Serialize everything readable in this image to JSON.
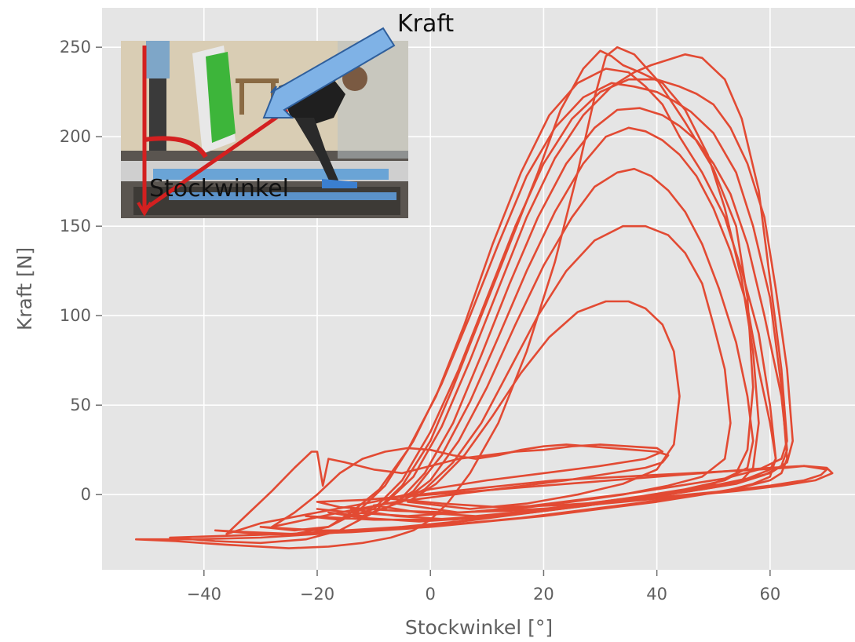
{
  "chart_data": {
    "type": "line",
    "title": "",
    "xlabel": "Stockwinkel [°]",
    "ylabel": "Kraft [N]",
    "xlim": [
      -58,
      75
    ],
    "ylim": [
      -42,
      272
    ],
    "xticks": [
      -40,
      -20,
      0,
      20,
      40,
      60
    ],
    "yticks": [
      0,
      50,
      100,
      150,
      200,
      250
    ],
    "xtick_labels": [
      "−40",
      "−20",
      "0",
      "20",
      "40",
      "60"
    ],
    "ytick_labels": [
      "0",
      "50",
      "100",
      "150",
      "200",
      "250"
    ],
    "grid": true,
    "line_color": "#e24a33",
    "background_color": "#e5e5e5",
    "description_of_series": "Overlaid force-angle loops (hysteresis cycles) of repeated poling strokes",
    "series": [
      {
        "x": [
          -52,
          -45,
          -36,
          -25,
          -18,
          -12,
          -7,
          -3,
          0,
          3,
          7,
          12,
          17,
          22,
          26,
          29,
          31,
          33,
          36,
          40,
          45,
          50,
          54,
          56,
          57,
          56,
          54,
          50,
          44,
          36,
          28,
          18,
          8,
          -2,
          -12,
          -20,
          -30,
          -42,
          -52
        ],
        "y": [
          -25,
          -26,
          -28,
          -30,
          -29,
          -27,
          -24,
          -20,
          -14,
          -5,
          12,
          40,
          80,
          130,
          180,
          222,
          245,
          250,
          246,
          232,
          208,
          182,
          150,
          110,
          60,
          25,
          12,
          6,
          2,
          -2,
          -6,
          -10,
          -14,
          -18,
          -20,
          -22,
          -24,
          -25,
          -25
        ]
      },
      {
        "x": [
          -46,
          -38,
          -30,
          -22,
          -16,
          -10,
          -5,
          0,
          4,
          9,
          14,
          19,
          23,
          27,
          30,
          32,
          34,
          37,
          41,
          45,
          49,
          52,
          55,
          57,
          58,
          57,
          55,
          50,
          42,
          34,
          25,
          15,
          5,
          -5,
          -15,
          -25,
          -36,
          -46
        ],
        "y": [
          -24,
          -26,
          -27,
          -25,
          -20,
          -10,
          5,
          30,
          60,
          100,
          140,
          180,
          215,
          238,
          248,
          245,
          240,
          236,
          230,
          215,
          190,
          160,
          120,
          80,
          40,
          15,
          8,
          4,
          0,
          -3,
          -7,
          -11,
          -15,
          -18,
          -20,
          -22,
          -23,
          -24
        ]
      },
      {
        "x": [
          -38,
          -30,
          -24,
          -18,
          -14,
          -9,
          -4,
          1,
          6,
          11,
          16,
          21,
          26,
          31,
          35,
          38,
          41,
          44,
          48,
          52,
          55,
          58,
          60,
          61,
          60,
          57,
          52,
          45,
          36,
          26,
          16,
          6,
          -4,
          -14,
          -24,
          -32,
          -38
        ],
        "y": [
          -20,
          -22,
          -22,
          -18,
          -10,
          3,
          25,
          55,
          95,
          140,
          180,
          212,
          230,
          238,
          236,
          228,
          218,
          200,
          180,
          155,
          125,
          90,
          50,
          20,
          10,
          6,
          2,
          -1,
          -5,
          -9,
          -13,
          -16,
          -19,
          -21,
          -22,
          -21,
          -20
        ]
      },
      {
        "x": [
          -30,
          -24,
          -18,
          -13,
          -8,
          -3,
          2,
          7,
          12,
          17,
          22,
          27,
          32,
          36,
          40,
          43,
          46,
          50,
          54,
          57,
          60,
          62,
          63,
          62,
          60,
          55,
          48,
          40,
          30,
          20,
          10,
          0,
          -10,
          -20,
          -30
        ],
        "y": [
          -18,
          -20,
          -18,
          -10,
          5,
          30,
          62,
          100,
          140,
          178,
          205,
          222,
          230,
          228,
          225,
          220,
          214,
          202,
          180,
          150,
          110,
          60,
          20,
          12,
          8,
          4,
          0,
          -4,
          -8,
          -12,
          -15,
          -18,
          -20,
          -20,
          -18
        ]
      },
      {
        "x": [
          -22,
          -16,
          -10,
          -5,
          0,
          5,
          10,
          15,
          20,
          25,
          30,
          35,
          40,
          44,
          47,
          50,
          53,
          56,
          59,
          61,
          63,
          64,
          63,
          60,
          55,
          48,
          40,
          30,
          20,
          10,
          0,
          -10,
          -22
        ],
        "y": [
          -12,
          -14,
          -8,
          8,
          35,
          70,
          110,
          150,
          185,
          210,
          225,
          232,
          232,
          228,
          224,
          218,
          205,
          185,
          155,
          115,
          70,
          30,
          18,
          12,
          8,
          4,
          0,
          -4,
          -8,
          -12,
          -14,
          -14,
          -12
        ]
      },
      {
        "x": [
          -20,
          -14,
          -8,
          -3,
          2,
          7,
          12,
          17,
          22,
          27,
          32,
          36,
          39,
          42,
          45,
          48,
          52,
          55,
          58,
          60,
          62,
          63,
          62,
          58,
          52,
          44,
          36,
          26,
          16,
          6,
          -4,
          -14,
          -20
        ],
        "y": [
          -8,
          -10,
          -5,
          10,
          38,
          75,
          115,
          155,
          188,
          212,
          228,
          236,
          240,
          243,
          246,
          244,
          232,
          210,
          170,
          120,
          70,
          30,
          20,
          14,
          9,
          5,
          1,
          -3,
          -7,
          -10,
          -12,
          -10,
          -8
        ]
      },
      {
        "x": [
          -18,
          -12,
          -6,
          -1,
          4,
          9,
          14,
          19,
          24,
          29,
          33,
          37,
          41,
          44,
          47,
          50,
          53,
          56,
          59,
          62,
          63,
          62,
          59,
          54,
          46,
          37,
          28,
          18,
          8,
          -2,
          -12,
          -18
        ],
        "y": [
          -10,
          -12,
          -5,
          12,
          40,
          78,
          118,
          155,
          185,
          205,
          215,
          216,
          212,
          206,
          198,
          185,
          168,
          140,
          100,
          55,
          25,
          16,
          11,
          6,
          2,
          -2,
          -6,
          -10,
          -13,
          -15,
          -13,
          -10
        ]
      },
      {
        "x": [
          -14,
          -8,
          -3,
          2,
          7,
          12,
          17,
          22,
          27,
          31,
          35,
          38,
          41,
          44,
          47,
          50,
          53,
          56,
          58,
          60,
          61,
          60,
          56,
          50,
          42,
          33,
          24,
          14,
          4,
          -6,
          -14
        ],
        "y": [
          -8,
          -8,
          2,
          22,
          52,
          88,
          125,
          158,
          185,
          200,
          205,
          203,
          198,
          190,
          178,
          160,
          136,
          105,
          70,
          40,
          20,
          14,
          9,
          5,
          1,
          -3,
          -7,
          -11,
          -14,
          -12,
          -8
        ]
      },
      {
        "x": [
          -10,
          -5,
          0,
          5,
          10,
          15,
          20,
          25,
          29,
          33,
          36,
          39,
          42,
          45,
          48,
          51,
          54,
          56,
          57,
          56,
          52,
          45,
          37,
          28,
          18,
          8,
          -2,
          -10
        ],
        "y": [
          -6,
          -4,
          8,
          30,
          60,
          95,
          128,
          155,
          172,
          180,
          182,
          178,
          170,
          158,
          140,
          115,
          85,
          55,
          30,
          15,
          8,
          3,
          -1,
          -5,
          -9,
          -12,
          -10,
          -6
        ]
      },
      {
        "x": [
          -6,
          -1,
          4,
          9,
          14,
          19,
          24,
          29,
          34,
          38,
          42,
          45,
          48,
          50,
          52,
          53,
          52,
          48,
          42,
          34,
          25,
          15,
          5,
          -6
        ],
        "y": [
          -5,
          3,
          18,
          40,
          70,
          100,
          125,
          142,
          150,
          150,
          145,
          135,
          118,
          95,
          70,
          40,
          20,
          10,
          5,
          0,
          -4,
          -8,
          -10,
          -5
        ]
      },
      {
        "x": [
          -4,
          1,
          6,
          11,
          16,
          21,
          26,
          31,
          35,
          38,
          41,
          43,
          44,
          43,
          40,
          34,
          26,
          17,
          7,
          -4
        ],
        "y": [
          -4,
          6,
          22,
          44,
          68,
          88,
          102,
          108,
          108,
          104,
          95,
          80,
          55,
          28,
          14,
          6,
          0,
          -5,
          -8,
          -4
        ]
      },
      {
        "x": [
          -8,
          -2,
          4,
          10,
          16,
          22,
          28,
          34,
          40,
          46,
          52,
          58,
          63,
          66,
          68,
          70,
          69,
          66,
          60,
          52,
          42,
          32,
          22,
          12,
          2,
          -8
        ],
        "y": [
          -2,
          0,
          2,
          4,
          6,
          8,
          9,
          10,
          11,
          12,
          13,
          14,
          15,
          16,
          15,
          14,
          11,
          8,
          5,
          2,
          -1,
          -4,
          -6,
          -7,
          -5,
          -2
        ]
      },
      {
        "x": [
          -20,
          -12,
          -4,
          4,
          12,
          20,
          28,
          36,
          44,
          52,
          60,
          66,
          70,
          71,
          68,
          62,
          54,
          44,
          34,
          24,
          14,
          4,
          -6,
          -16,
          -20
        ],
        "y": [
          -4,
          -3,
          -1,
          1,
          3,
          5,
          7,
          9,
          11,
          13,
          15,
          16,
          15,
          12,
          8,
          5,
          2,
          -1,
          -4,
          -7,
          -9,
          -10,
          -9,
          -7,
          -4
        ]
      },
      {
        "x": [
          -28,
          -24,
          -20,
          -16,
          -12,
          -8,
          -4,
          0,
          4,
          8,
          12,
          16,
          20,
          24,
          28,
          32,
          36,
          40,
          42,
          41,
          38,
          32,
          24,
          14,
          4,
          -6,
          -16,
          -28
        ],
        "y": [
          -18,
          -10,
          0,
          12,
          20,
          24,
          26,
          25,
          22,
          20,
          22,
          25,
          27,
          28,
          27,
          26,
          25,
          24,
          22,
          18,
          15,
          12,
          8,
          4,
          0,
          -4,
          -10,
          -18
        ]
      },
      {
        "x": [
          -36,
          -32,
          -28,
          -24,
          -21,
          -20,
          -19,
          -18,
          -15,
          -10,
          -5,
          0,
          5,
          10,
          15,
          20,
          25,
          30,
          35,
          40,
          41,
          38,
          30,
          20,
          10,
          0,
          -10,
          -20,
          -30,
          -36
        ],
        "y": [
          -22,
          -10,
          2,
          15,
          24,
          24,
          5,
          20,
          18,
          14,
          12,
          16,
          20,
          22,
          24,
          25,
          27,
          28,
          27,
          26,
          24,
          20,
          16,
          12,
          8,
          3,
          -4,
          -10,
          -16,
          -22
        ]
      }
    ]
  },
  "inset": {
    "label_force": "Kraft",
    "label_angle": "Stockwinkel"
  }
}
